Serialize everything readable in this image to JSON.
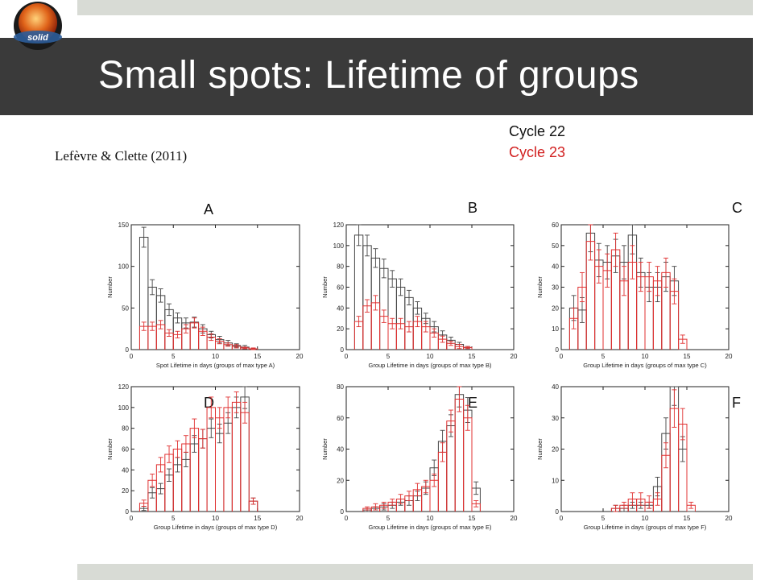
{
  "slide": {
    "title": "Small spots: Lifetime of groups",
    "logo_text": "solid",
    "citation": "Lefèvre & Clette (2011)"
  },
  "legend": {
    "cycle22": "Cycle 22",
    "cycle23": "Cycle 23",
    "cycle22_color": "#444444",
    "cycle23_color": "#e03030"
  },
  "panels": [
    {
      "letter": "A",
      "xlabel": "Spot Lifetime in days (groups of max type A)"
    },
    {
      "letter": "B",
      "xlabel": "Group Lifetime in days (groups of max type B)"
    },
    {
      "letter": "C",
      "xlabel": "Group Lifetime in days (groups of max type C)"
    },
    {
      "letter": "D",
      "xlabel": "Group Lifetime in days (groups of max type D)"
    },
    {
      "letter": "E",
      "xlabel": "Group Lifetime in days (groups of max type E)"
    },
    {
      "letter": "F",
      "xlabel": "Group Lifetime in days (groups of max type F)"
    }
  ],
  "chart_data": [
    {
      "type": "histogram",
      "panel": "A",
      "xlabel": "Spot Lifetime in days (groups of max type A)",
      "ylabel": "Number",
      "xlim": [
        0,
        20
      ],
      "ylim": [
        0,
        150
      ],
      "xticks": [
        0,
        5,
        10,
        15,
        20
      ],
      "yticks": [
        0,
        50,
        100,
        150
      ],
      "bins": [
        1,
        2,
        3,
        4,
        5,
        6,
        7,
        8,
        9,
        10,
        11,
        12,
        13,
        14
      ],
      "series": [
        {
          "name": "Cycle 22",
          "values": [
            135,
            75,
            65,
            48,
            38,
            32,
            33,
            25,
            18,
            12,
            8,
            5,
            3,
            1
          ],
          "errors": [
            12,
            9,
            8,
            7,
            6,
            6,
            6,
            5,
            4,
            4,
            3,
            2,
            2,
            1
          ]
        },
        {
          "name": "Cycle 23",
          "values": [
            28,
            28,
            30,
            20,
            18,
            25,
            32,
            22,
            15,
            10,
            6,
            4,
            2,
            1
          ],
          "errors": [
            5,
            5,
            5,
            4,
            4,
            5,
            6,
            5,
            4,
            3,
            2,
            2,
            1,
            1
          ]
        }
      ]
    },
    {
      "type": "histogram",
      "panel": "B",
      "xlabel": "Group Lifetime in days (groups of max type B)",
      "ylabel": "Number",
      "xlim": [
        0,
        20
      ],
      "ylim": [
        0,
        120
      ],
      "xticks": [
        0,
        5,
        10,
        15,
        20
      ],
      "yticks": [
        0,
        20,
        40,
        60,
        80,
        100,
        120
      ],
      "bins": [
        1,
        2,
        3,
        4,
        5,
        6,
        7,
        8,
        9,
        10,
        11,
        12,
        13,
        14
      ],
      "series": [
        {
          "name": "Cycle 22",
          "values": [
            110,
            100,
            88,
            78,
            68,
            60,
            50,
            40,
            30,
            22,
            14,
            9,
            5,
            2
          ],
          "errors": [
            10,
            10,
            9,
            9,
            8,
            8,
            7,
            6,
            5,
            5,
            4,
            3,
            2,
            1
          ]
        },
        {
          "name": "Cycle 23",
          "values": [
            27,
            42,
            45,
            32,
            25,
            25,
            22,
            27,
            22,
            16,
            10,
            6,
            3,
            2
          ],
          "errors": [
            5,
            6,
            7,
            6,
            5,
            5,
            5,
            5,
            5,
            4,
            3,
            2,
            2,
            1
          ]
        }
      ]
    },
    {
      "type": "histogram",
      "panel": "C",
      "xlabel": "Group Lifetime in days (groups of max type C)",
      "ylabel": "Number",
      "xlim": [
        0,
        20
      ],
      "ylim": [
        0,
        60
      ],
      "xticks": [
        0,
        5,
        10,
        15,
        20
      ],
      "yticks": [
        0,
        10,
        20,
        30,
        40,
        50,
        60
      ],
      "bins": [
        1,
        2,
        3,
        4,
        5,
        6,
        7,
        8,
        9,
        10,
        11,
        12,
        13,
        14
      ],
      "series": [
        {
          "name": "Cycle 22",
          "values": [
            20,
            19,
            56,
            43,
            42,
            45,
            42,
            55,
            37,
            30,
            30,
            35,
            33,
            0
          ],
          "errors": [
            6,
            6,
            9,
            8,
            8,
            8,
            8,
            9,
            7,
            7,
            7,
            7,
            7,
            0
          ]
        },
        {
          "name": "Cycle 23",
          "values": [
            15,
            30,
            52,
            40,
            38,
            48,
            33,
            42,
            35,
            35,
            33,
            37,
            28,
            5
          ],
          "errors": [
            5,
            7,
            9,
            8,
            8,
            8,
            7,
            8,
            7,
            7,
            7,
            7,
            6,
            2
          ]
        }
      ]
    },
    {
      "type": "histogram",
      "panel": "D",
      "xlabel": "Group Lifetime in days (groups of max type D)",
      "ylabel": "Number",
      "xlim": [
        0,
        20
      ],
      "ylim": [
        0,
        120
      ],
      "xticks": [
        0,
        5,
        10,
        15,
        20
      ],
      "yticks": [
        0,
        20,
        40,
        60,
        80,
        100,
        120
      ],
      "bins": [
        1,
        2,
        3,
        4,
        5,
        6,
        7,
        8,
        9,
        10,
        11,
        12,
        13,
        14
      ],
      "series": [
        {
          "name": "Cycle 22",
          "values": [
            3,
            18,
            22,
            35,
            45,
            50,
            65,
            70,
            80,
            75,
            85,
            100,
            110,
            10
          ],
          "errors": [
            2,
            5,
            5,
            6,
            7,
            7,
            8,
            9,
            9,
            9,
            10,
            10,
            11,
            3
          ]
        },
        {
          "name": "Cycle 23",
          "values": [
            8,
            30,
            45,
            55,
            60,
            65,
            80,
            70,
            100,
            90,
            100,
            105,
            95,
            10
          ],
          "errors": [
            3,
            6,
            7,
            8,
            8,
            8,
            9,
            9,
            10,
            10,
            10,
            10,
            10,
            3
          ]
        }
      ]
    },
    {
      "type": "histogram",
      "panel": "E",
      "xlabel": "Group Lifetime in days (groups of max type E)",
      "ylabel": "Number",
      "xlim": [
        0,
        20
      ],
      "ylim": [
        0,
        80
      ],
      "xticks": [
        0,
        5,
        10,
        15,
        20
      ],
      "yticks": [
        0,
        20,
        40,
        60,
        80
      ],
      "bins": [
        2,
        3,
        4,
        5,
        6,
        7,
        8,
        9,
        10,
        11,
        12,
        13,
        14,
        15
      ],
      "series": [
        {
          "name": "Cycle 22",
          "values": [
            1,
            2,
            3,
            4,
            6,
            7,
            10,
            15,
            28,
            45,
            55,
            75,
            65,
            15
          ],
          "errors": [
            1,
            1,
            2,
            2,
            2,
            3,
            3,
            4,
            5,
            7,
            7,
            8,
            8,
            4
          ]
        },
        {
          "name": "Cycle 23",
          "values": [
            2,
            3,
            4,
            6,
            8,
            10,
            14,
            16,
            20,
            38,
            58,
            72,
            60,
            5
          ],
          "errors": [
            1,
            2,
            2,
            2,
            3,
            3,
            4,
            4,
            4,
            6,
            7,
            8,
            8,
            2
          ]
        }
      ]
    },
    {
      "type": "histogram",
      "panel": "F",
      "xlabel": "Group Lifetime in days (groups of max type F)",
      "ylabel": "Number",
      "xlim": [
        0,
        20
      ],
      "ylim": [
        0,
        40
      ],
      "xticks": [
        0,
        5,
        10,
        15,
        20
      ],
      "yticks": [
        0,
        10,
        20,
        30,
        40
      ],
      "bins": [
        6,
        7,
        8,
        9,
        10,
        11,
        12,
        13,
        14,
        15
      ],
      "series": [
        {
          "name": "Cycle 22",
          "values": [
            1,
            1,
            2,
            2,
            2,
            8,
            25,
            40,
            20,
            0
          ],
          "errors": [
            1,
            1,
            1,
            1,
            1,
            3,
            5,
            6,
            4,
            0
          ]
        },
        {
          "name": "Cycle 23",
          "values": [
            1,
            2,
            4,
            4,
            3,
            4,
            18,
            33,
            28,
            2
          ],
          "errors": [
            1,
            1,
            2,
            2,
            2,
            2,
            4,
            6,
            5,
            1
          ]
        }
      ]
    }
  ]
}
